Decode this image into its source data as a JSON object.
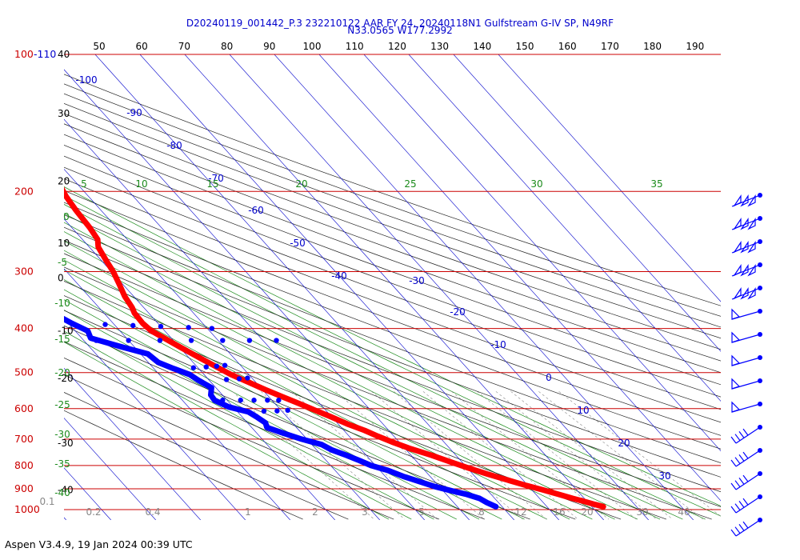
{
  "chart_data": {
    "type": "skew-t",
    "title_line1": "D20240119_001442_P.3 232210122 AAR FY 24, 20240118N1 Gulfstream G-IV SP, N49RF",
    "title_line2": "N33.0565 W177.2992",
    "top_temp_labels": [
      "50",
      "60",
      "70",
      "80",
      "90",
      "100",
      "110",
      "120",
      "130",
      "140",
      "150",
      "160",
      "170",
      "180",
      "190"
    ],
    "pressure_levels": [
      {
        "label": "100-110",
        "p": 100
      },
      {
        "label": "200",
        "p": 200
      },
      {
        "label": "300",
        "p": 300
      },
      {
        "label": "400",
        "p": 400
      },
      {
        "label": "500",
        "p": 500
      },
      {
        "label": "600",
        "p": 600
      },
      {
        "label": "700",
        "p": 700
      },
      {
        "label": "800",
        "p": 800
      },
      {
        "label": "900",
        "p": 900
      },
      {
        "label": "1000",
        "p": 1000
      }
    ],
    "height_labels": [
      {
        "label": "40",
        "p": 100
      },
      {
        "label": "30",
        "p": 135
      },
      {
        "label": "20",
        "p": 190
      },
      {
        "label": "10",
        "p": 260
      },
      {
        "label": "0",
        "p": 310
      },
      {
        "label": "-10",
        "p": 405
      },
      {
        "label": "-20",
        "p": 515
      },
      {
        "label": "-30",
        "p": 715
      },
      {
        "label": "-40",
        "p": 905
      }
    ],
    "isotherm_labels": [
      "-100",
      "-90",
      "-80",
      "-70",
      "-60",
      "-50",
      "-40",
      "-30",
      "-20",
      "-10",
      "0",
      "10",
      "20",
      "30"
    ],
    "mixing_ratio_bottom_labels": [
      "0.1",
      "0.2",
      "0.4",
      "1",
      "2",
      "3",
      "5",
      "8",
      "12",
      "16",
      "20",
      "30",
      "40"
    ],
    "mixing_ratio_top_labels": [
      "5",
      "10",
      "15",
      "20",
      "25",
      "30",
      "35"
    ],
    "left_green_labels": [
      "0",
      "-5",
      "-10",
      "-15",
      "-20",
      "-25",
      "-30",
      "-35",
      "-40"
    ],
    "temperature_profile": [
      [
        -44.2,
        195
      ],
      [
        -45.0,
        205
      ],
      [
        -45.6,
        220
      ],
      [
        -46.0,
        240
      ],
      [
        -46.6,
        255
      ],
      [
        -48.0,
        265
      ],
      [
        -49.0,
        285
      ],
      [
        -49.6,
        300
      ],
      [
        -50.8,
        320
      ],
      [
        -52.0,
        340
      ],
      [
        -52.6,
        360
      ],
      [
        -53.2,
        370
      ],
      [
        -53.4,
        390
      ],
      [
        -53.0,
        405
      ],
      [
        -51.6,
        420
      ],
      [
        -49.8,
        440
      ],
      [
        -48.0,
        460
      ],
      [
        -46.2,
        480
      ],
      [
        -44.0,
        505
      ],
      [
        -41.6,
        525
      ],
      [
        -39.4,
        545
      ],
      [
        -37.0,
        565
      ],
      [
        -34.6,
        585
      ],
      [
        -32.4,
        605
      ],
      [
        -30.2,
        625
      ],
      [
        -27.8,
        650
      ],
      [
        -25.4,
        670
      ],
      [
        -23.6,
        690
      ],
      [
        -21.6,
        710
      ],
      [
        -18.8,
        735
      ],
      [
        -15.4,
        760
      ],
      [
        -12.6,
        785
      ],
      [
        -9.8,
        810
      ],
      [
        -6.8,
        835
      ],
      [
        -3.6,
        860
      ],
      [
        -0.4,
        885
      ],
      [
        2.4,
        905
      ],
      [
        5.0,
        925
      ],
      [
        7.4,
        945
      ],
      [
        9.4,
        960
      ],
      [
        11.2,
        975
      ],
      [
        12.6,
        985
      ]
    ],
    "dewpoint_profile": [
      [
        -70.6,
        230
      ],
      [
        -73.4,
        240
      ],
      [
        -75.8,
        255
      ],
      [
        -78.4,
        270
      ],
      [
        -81.0,
        282
      ],
      [
        -84.4,
        298
      ],
      [
        -87.4,
        312
      ],
      [
        -89.4,
        325
      ],
      [
        -87.6,
        330
      ],
      [
        -80.8,
        335
      ],
      [
        -75.4,
        345
      ],
      [
        -72.8,
        352
      ],
      [
        -70.0,
        365
      ],
      [
        -71.2,
        372
      ],
      [
        -69.2,
        390
      ],
      [
        -67.2,
        405
      ],
      [
        -68.0,
        420
      ],
      [
        -62.6,
        440
      ],
      [
        -58.4,
        455
      ],
      [
        -57.8,
        475
      ],
      [
        -55.6,
        490
      ],
      [
        -53.2,
        505
      ],
      [
        -52.4,
        520
      ],
      [
        -51.0,
        540
      ],
      [
        -52.6,
        560
      ],
      [
        -52.8,
        575
      ],
      [
        -51.0,
        595
      ],
      [
        -47.6,
        610
      ],
      [
        -46.8,
        625
      ],
      [
        -46.0,
        645
      ],
      [
        -46.6,
        660
      ],
      [
        -44.0,
        680
      ],
      [
        -41.2,
        700
      ],
      [
        -37.8,
        720
      ],
      [
        -36.6,
        740
      ],
      [
        -34.4,
        760
      ],
      [
        -32.6,
        780
      ],
      [
        -31.0,
        800
      ],
      [
        -28.2,
        820
      ],
      [
        -26.0,
        845
      ],
      [
        -23.2,
        870
      ],
      [
        -21.0,
        890
      ],
      [
        -18.0,
        910
      ],
      [
        -15.6,
        925
      ],
      [
        -13.4,
        945
      ],
      [
        -12.6,
        965
      ],
      [
        -11.4,
        985
      ]
    ],
    "dewpoint_dots": [
      [
        [
          -69.2,
          390
        ],
        [
          -62,
          392
        ],
        [
          -56,
          394
        ],
        [
          -50,
          396
        ],
        [
          -44,
          398
        ],
        [
          -39,
          400
        ]
      ],
      [
        [
          -67.2,
          425
        ],
        [
          -60,
          425
        ],
        [
          -53,
          425
        ],
        [
          -46,
          425
        ],
        [
          -39,
          425
        ],
        [
          -33,
          425
        ],
        [
          -27,
          425
        ]
      ],
      [
        [
          -55.6,
          490
        ],
        [
          -51,
          488
        ],
        [
          -48,
          486
        ],
        [
          -45.5,
          484
        ],
        [
          -43.5,
          482
        ]
      ],
      [
        [
          -52.4,
          520
        ],
        [
          -46,
          518
        ],
        [
          -43,
          516
        ],
        [
          -41,
          514
        ]
      ],
      [
        [
          -51.0,
          575
        ],
        [
          -47,
          575
        ],
        [
          -44,
          575
        ],
        [
          -41,
          575
        ],
        [
          -38.5,
          575
        ]
      ],
      [
        [
          -47.6,
          610
        ],
        [
          -44,
          608
        ],
        [
          -41,
          607
        ],
        [
          -38.5,
          605
        ]
      ]
    ],
    "wind_barbs_count": 15,
    "footer": "Aspen V3.4.9, 19 Jan 2024  00:39 UTC"
  }
}
